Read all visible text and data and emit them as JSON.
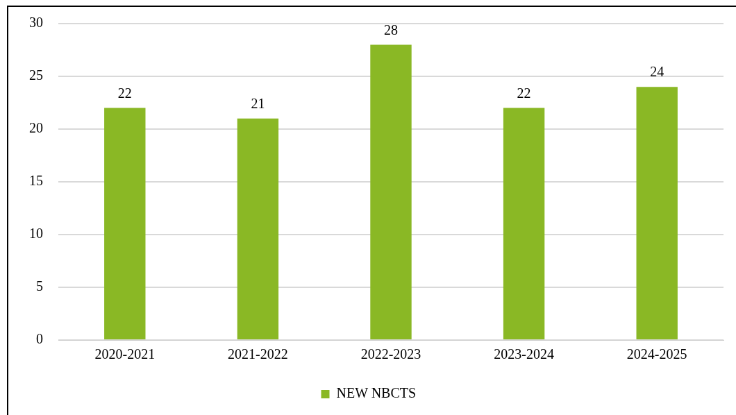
{
  "chart_data": {
    "type": "bar",
    "categories": [
      "2020-2021",
      "2021-2022",
      "2022-2023",
      "2023-2024",
      "2024-2025"
    ],
    "series": [
      {
        "name": "NEW NBCTS",
        "color": "#8ab825",
        "values": [
          22,
          21,
          28,
          22,
          24
        ]
      }
    ],
    "ylim": [
      0,
      30
    ],
    "yticks": [
      0,
      5,
      10,
      15,
      20,
      25,
      30
    ],
    "grid": "y",
    "legend": "bottom",
    "data_labels": true
  }
}
